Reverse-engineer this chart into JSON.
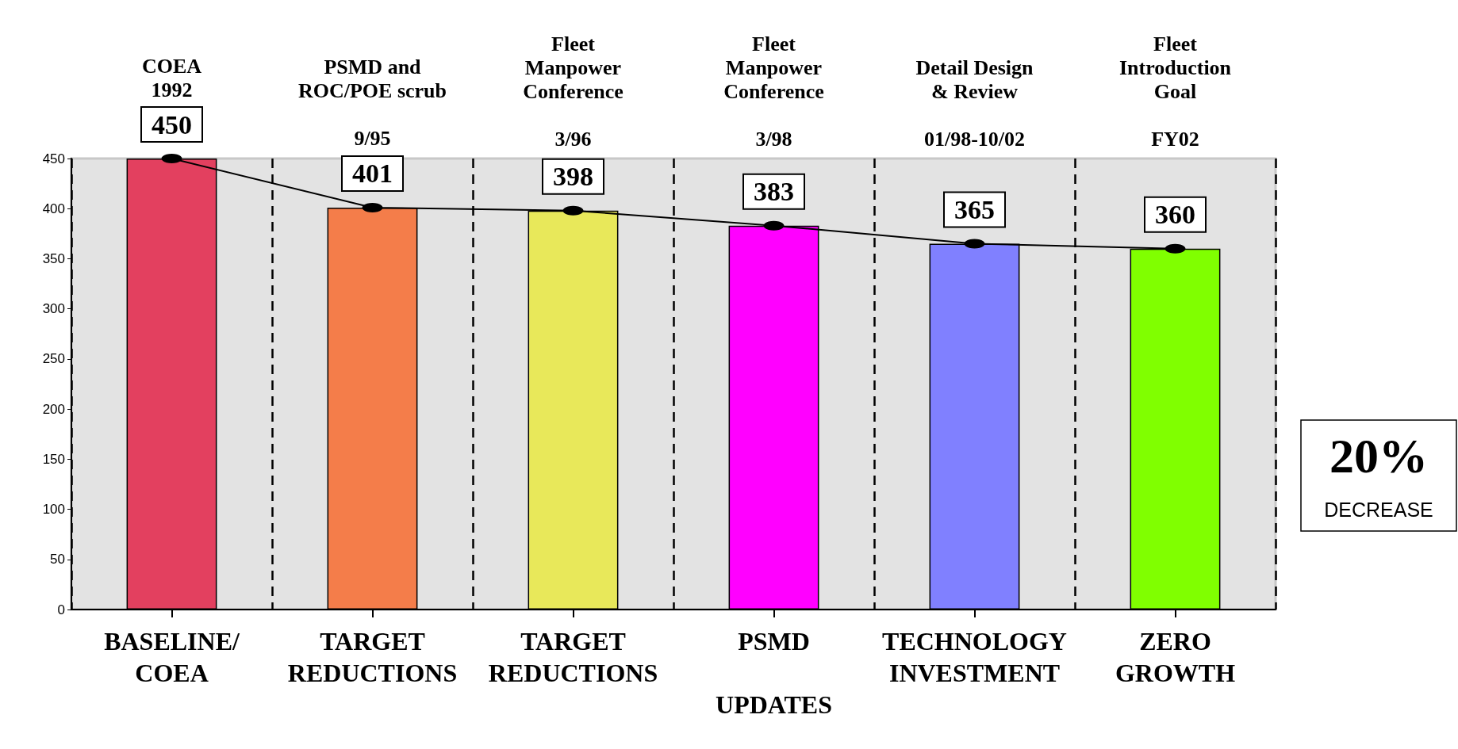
{
  "chart_data": {
    "type": "bar",
    "categories": [
      "BASELINE/\nCOEA",
      "TARGET\nREDUCTIONS",
      "TARGET\nREDUCTIONS",
      "PSMD\n\nUPDATES",
      "TECHNOLOGY\nINVESTMENT",
      "ZERO\nGROWTH"
    ],
    "series": [
      {
        "values": [
          450,
          401,
          398,
          383,
          365,
          360
        ],
        "colors": [
          "#e3405f",
          "#f47d4a",
          "#e8e85a",
          "#ff00ff",
          "#8080ff",
          "#80ff00"
        ]
      },
      {
        "type": "line",
        "color": "#000000",
        "values": [
          450,
          401,
          398,
          383,
          365,
          360
        ],
        "marker": "circle",
        "line_style": "solid",
        "value_labels": [
          "450",
          "401",
          "398",
          "383",
          "365",
          "360"
        ]
      }
    ],
    "ylim": [
      0,
      450
    ],
    "yticks": [
      0,
      50,
      100,
      150,
      200,
      250,
      300,
      350,
      400,
      450
    ],
    "grid": "x",
    "annotations": [
      "COEA\n1992",
      "PSMD and\nROC/POE scrub\n\n9/95",
      "Fleet\nManpower\nConference\n\n3/96",
      "Fleet\nManpower\nConference\n\n3/98",
      "Detail Design\n& Review\n\n01/98-10/02",
      "Fleet\nIntroduction\nGoal\n\nFY02",
      "20%\nDECREASE"
    ]
  }
}
